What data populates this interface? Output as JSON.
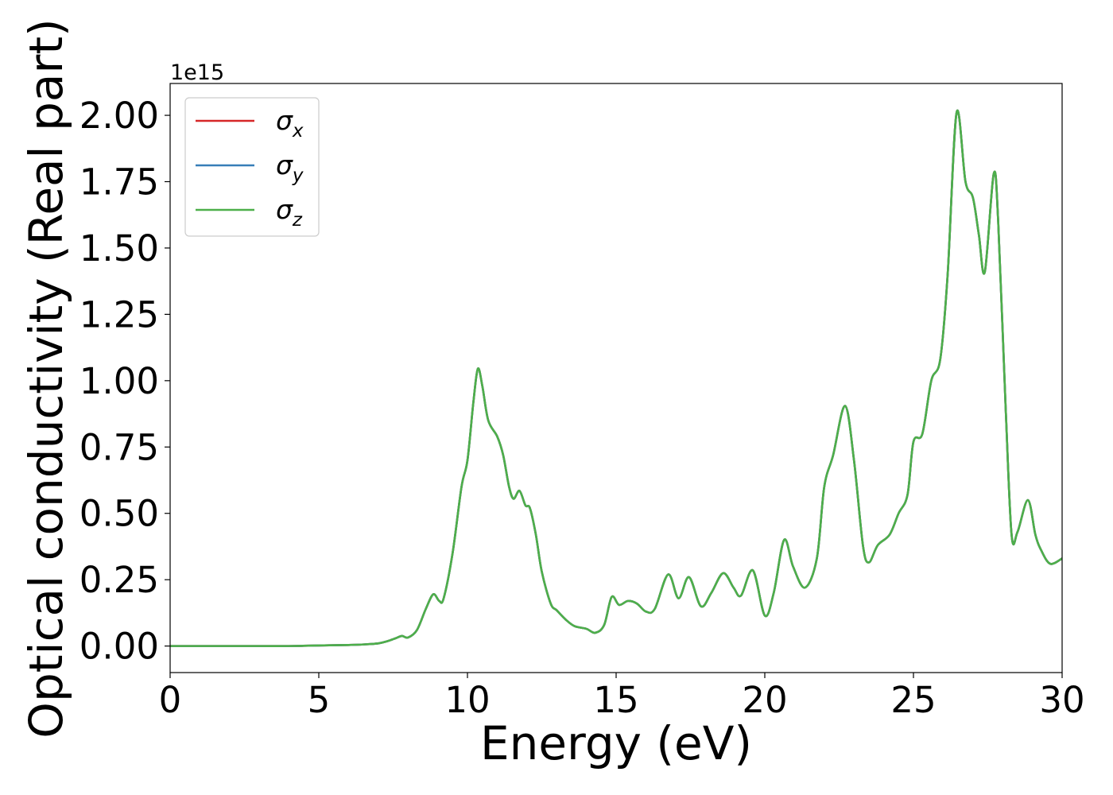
{
  "chart_data": {
    "type": "line",
    "title": "",
    "xlabel": "Energy (eV)",
    "ylabel": "Optical conductivity (Real part)",
    "y_offset_label": "1e15",
    "xlim": [
      0,
      30
    ],
    "ylim": [
      -0.1,
      2.12
    ],
    "x_ticks": [
      0,
      5,
      10,
      15,
      20,
      25,
      30
    ],
    "x_tick_labels": [
      "0",
      "5",
      "10",
      "15",
      "20",
      "25",
      "30"
    ],
    "y_ticks": [
      0.0,
      0.25,
      0.5,
      0.75,
      1.0,
      1.25,
      1.5,
      1.75,
      2.0
    ],
    "y_tick_labels": [
      "0.00",
      "0.25",
      "0.50",
      "0.75",
      "1.00",
      "1.25",
      "1.50",
      "1.75",
      "2.00"
    ],
    "grid": false,
    "legend_position": "top-left",
    "legend": [
      {
        "base": "σ",
        "sub": "x",
        "color": "#d62728"
      },
      {
        "base": "σ",
        "sub": "y",
        "color": "#377eb8"
      },
      {
        "base": "σ",
        "sub": "z",
        "color": "#4daf4a"
      }
    ],
    "x": [
      0,
      1,
      2,
      3,
      4,
      5,
      6,
      6.5,
      7,
      7.3,
      7.6,
      7.8,
      8.0,
      8.3,
      8.6,
      8.85,
      9.05,
      9.2,
      9.5,
      9.8,
      10.0,
      10.2,
      10.35,
      10.5,
      10.7,
      11.0,
      11.2,
      11.4,
      11.55,
      11.75,
      11.95,
      12.1,
      12.3,
      12.5,
      12.8,
      13.0,
      13.3,
      13.6,
      14.0,
      14.3,
      14.6,
      14.85,
      15.1,
      15.4,
      15.7,
      16.0,
      16.3,
      16.75,
      17.1,
      17.45,
      17.85,
      18.2,
      18.6,
      18.95,
      19.2,
      19.6,
      20.0,
      20.3,
      20.65,
      20.95,
      21.35,
      21.75,
      22.0,
      22.3,
      22.7,
      23.0,
      23.3,
      23.5,
      23.8,
      24.2,
      24.5,
      24.8,
      25.0,
      25.3,
      25.6,
      25.9,
      26.15,
      26.45,
      26.75,
      27.0,
      27.2,
      27.4,
      27.7,
      27.85,
      28.1,
      28.3,
      28.5,
      28.85,
      29.1,
      29.3,
      29.6,
      30.0
    ],
    "series": [
      {
        "name": "σx",
        "color": "#d62728",
        "values": [
          0,
          0,
          0,
          0,
          0,
          0.002,
          0.004,
          0.006,
          0.01,
          0.018,
          0.03,
          0.038,
          0.032,
          0.06,
          0.14,
          0.195,
          0.17,
          0.18,
          0.35,
          0.6,
          0.7,
          0.92,
          1.045,
          0.98,
          0.85,
          0.79,
          0.72,
          0.6,
          0.555,
          0.585,
          0.53,
          0.52,
          0.42,
          0.28,
          0.16,
          0.135,
          0.1,
          0.075,
          0.065,
          0.05,
          0.08,
          0.185,
          0.155,
          0.17,
          0.16,
          0.13,
          0.14,
          0.27,
          0.18,
          0.26,
          0.15,
          0.2,
          0.275,
          0.22,
          0.19,
          0.285,
          0.115,
          0.2,
          0.4,
          0.3,
          0.22,
          0.33,
          0.6,
          0.72,
          0.905,
          0.7,
          0.38,
          0.315,
          0.38,
          0.42,
          0.5,
          0.57,
          0.77,
          0.8,
          1.0,
          1.08,
          1.4,
          2.01,
          1.75,
          1.69,
          1.55,
          1.41,
          1.78,
          1.6,
          0.9,
          0.42,
          0.43,
          0.55,
          0.42,
          0.36,
          0.31,
          0.33
        ]
      },
      {
        "name": "σy",
        "color": "#377eb8",
        "values": [
          0,
          0,
          0,
          0,
          0,
          0.002,
          0.004,
          0.006,
          0.01,
          0.018,
          0.03,
          0.038,
          0.032,
          0.06,
          0.14,
          0.195,
          0.17,
          0.18,
          0.35,
          0.6,
          0.7,
          0.92,
          1.045,
          0.98,
          0.85,
          0.79,
          0.72,
          0.6,
          0.555,
          0.585,
          0.53,
          0.52,
          0.42,
          0.28,
          0.16,
          0.135,
          0.1,
          0.075,
          0.065,
          0.05,
          0.08,
          0.185,
          0.155,
          0.17,
          0.16,
          0.13,
          0.14,
          0.27,
          0.18,
          0.26,
          0.15,
          0.2,
          0.275,
          0.22,
          0.19,
          0.285,
          0.115,
          0.2,
          0.4,
          0.3,
          0.22,
          0.33,
          0.6,
          0.72,
          0.905,
          0.7,
          0.38,
          0.315,
          0.38,
          0.42,
          0.5,
          0.57,
          0.77,
          0.8,
          1.0,
          1.08,
          1.4,
          2.01,
          1.75,
          1.69,
          1.55,
          1.41,
          1.78,
          1.6,
          0.9,
          0.42,
          0.43,
          0.55,
          0.42,
          0.36,
          0.31,
          0.33
        ]
      },
      {
        "name": "σz",
        "color": "#4daf4a",
        "values": [
          0,
          0,
          0,
          0,
          0,
          0.002,
          0.004,
          0.006,
          0.01,
          0.018,
          0.03,
          0.038,
          0.032,
          0.06,
          0.14,
          0.195,
          0.17,
          0.18,
          0.35,
          0.6,
          0.7,
          0.92,
          1.045,
          0.98,
          0.85,
          0.79,
          0.72,
          0.6,
          0.555,
          0.585,
          0.53,
          0.52,
          0.42,
          0.28,
          0.16,
          0.135,
          0.1,
          0.075,
          0.065,
          0.05,
          0.08,
          0.185,
          0.155,
          0.17,
          0.16,
          0.13,
          0.14,
          0.27,
          0.18,
          0.26,
          0.15,
          0.2,
          0.275,
          0.22,
          0.19,
          0.285,
          0.115,
          0.2,
          0.4,
          0.3,
          0.22,
          0.33,
          0.6,
          0.72,
          0.905,
          0.7,
          0.38,
          0.315,
          0.38,
          0.42,
          0.5,
          0.57,
          0.77,
          0.8,
          1.0,
          1.08,
          1.4,
          2.01,
          1.75,
          1.69,
          1.55,
          1.41,
          1.78,
          1.6,
          0.9,
          0.42,
          0.43,
          0.55,
          0.42,
          0.36,
          0.31,
          0.33
        ]
      }
    ]
  }
}
